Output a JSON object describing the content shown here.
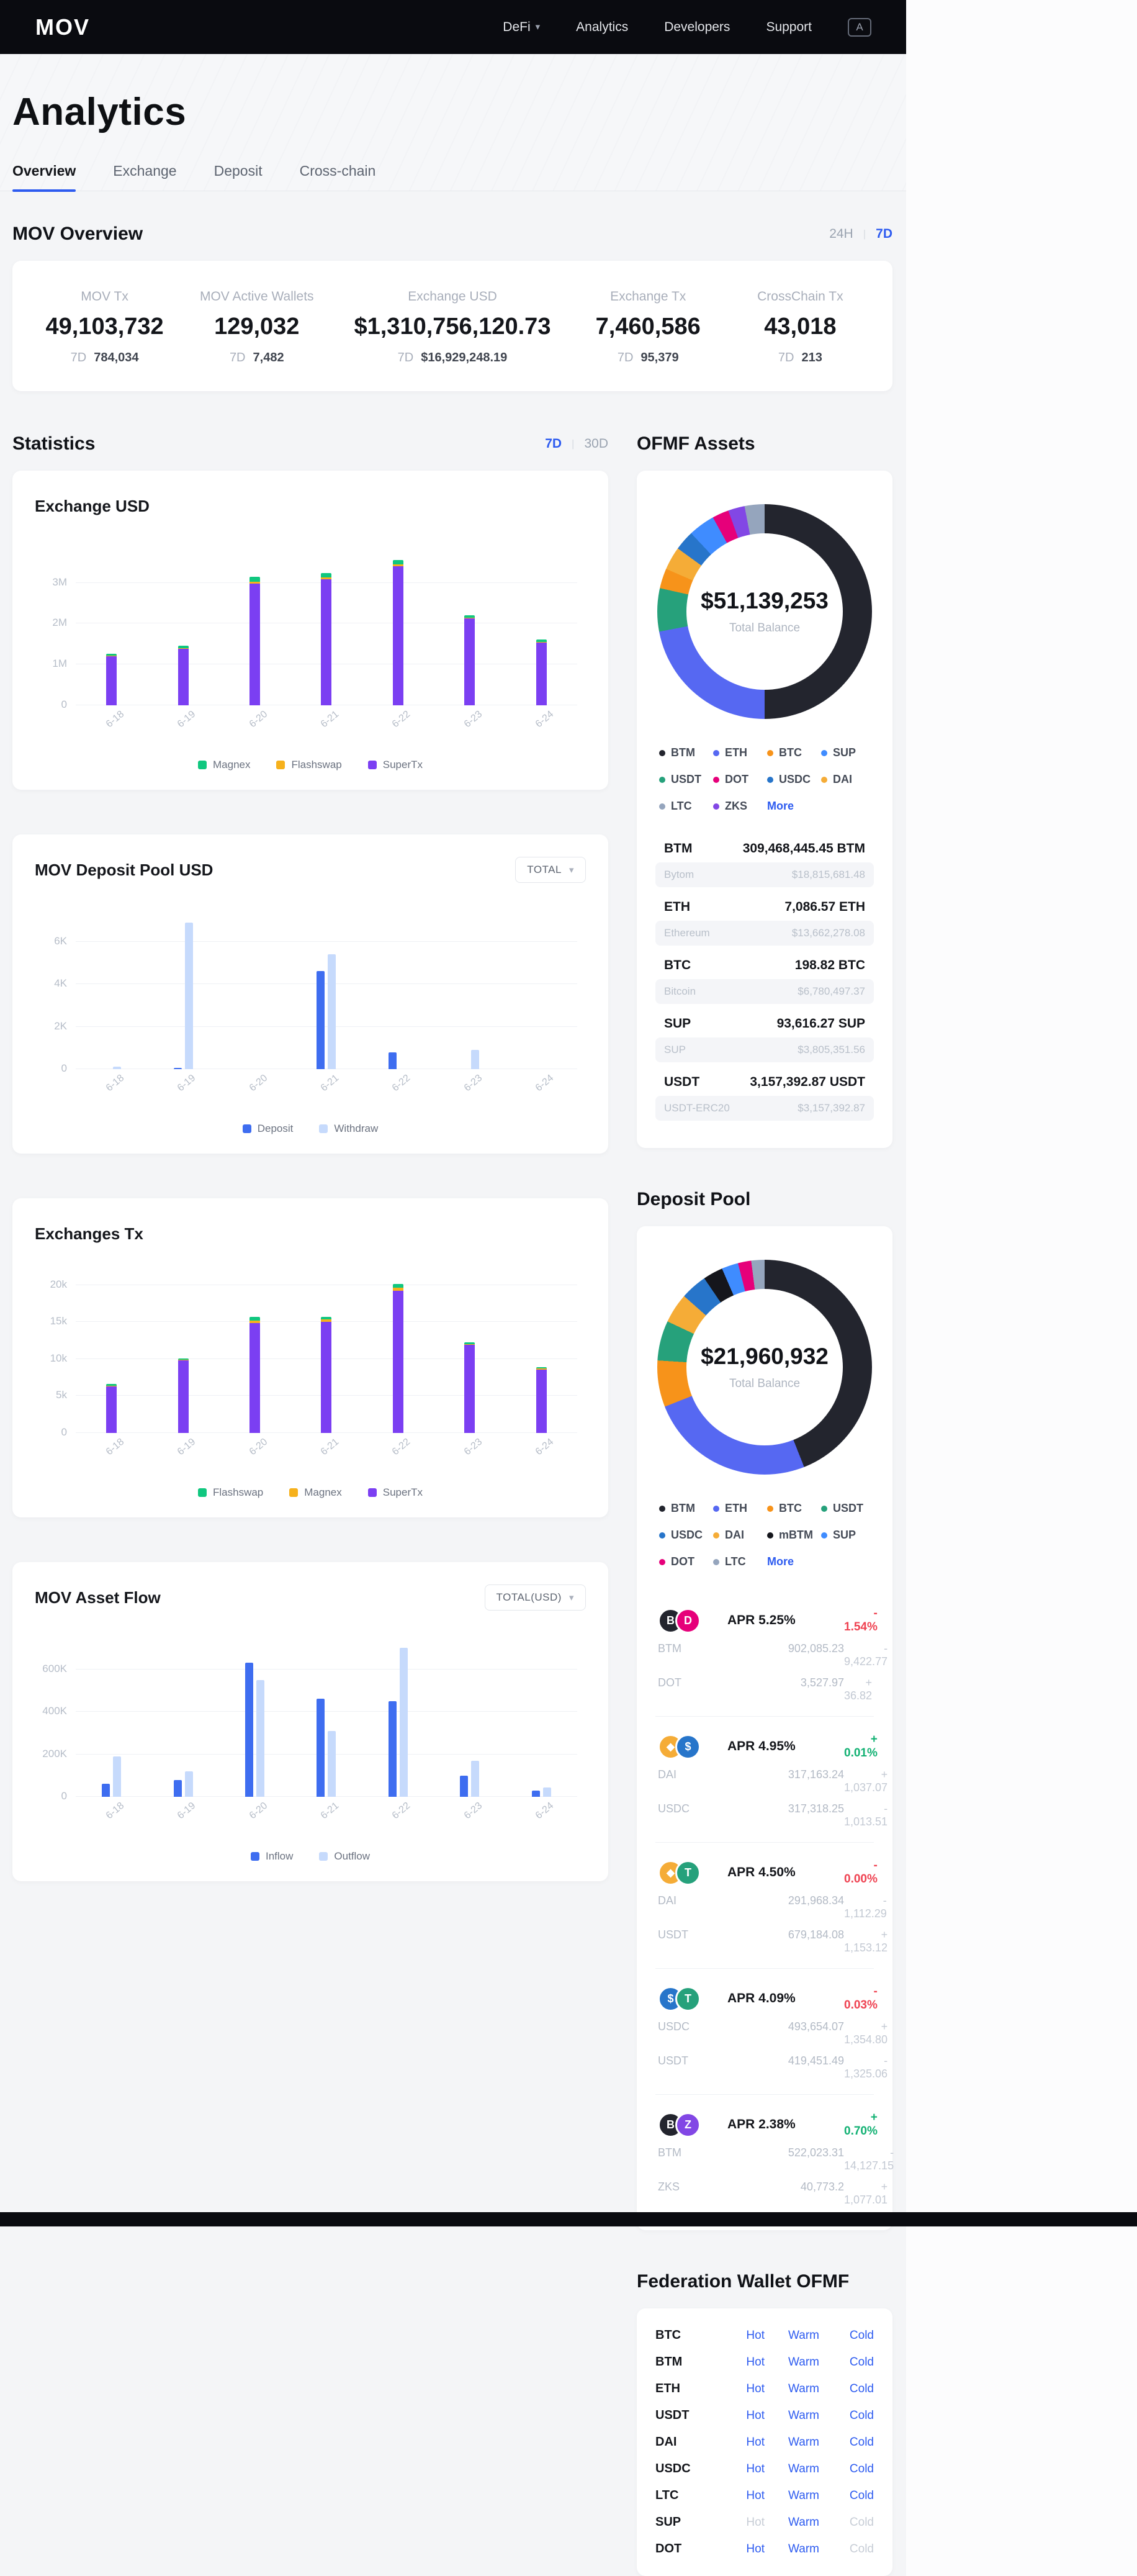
{
  "header": {
    "logo": "MOV",
    "nav": [
      {
        "label": "DeFi"
      },
      {
        "label": "Analytics"
      },
      {
        "label": "Developers"
      },
      {
        "label": "Support"
      }
    ],
    "lang_icon": "A"
  },
  "hero": {
    "title": "Analytics"
  },
  "tabs": [
    {
      "label": "Overview"
    },
    {
      "label": "Exchange"
    },
    {
      "label": "Deposit"
    },
    {
      "label": "Cross-chain"
    }
  ],
  "overview": {
    "title": "MOV Overview",
    "range_24h": "24H",
    "range_7d": "7D",
    "stats": [
      {
        "label": "MOV Tx",
        "value": "49,103,732",
        "sub_label": "7D",
        "sub_value": "784,034"
      },
      {
        "label": "MOV Active Wallets",
        "value": "129,032",
        "sub_label": "7D",
        "sub_value": "7,482"
      },
      {
        "label": "Exchange USD",
        "value": "$1,310,756,120.73",
        "sub_label": "7D",
        "sub_value": "$16,929,248.19"
      },
      {
        "label": "Exchange Tx",
        "value": "7,460,586",
        "sub_label": "7D",
        "sub_value": "95,379"
      },
      {
        "label": "CrossChain Tx",
        "value": "43,018",
        "sub_label": "7D",
        "sub_value": "213"
      }
    ]
  },
  "statistics": {
    "title": "Statistics",
    "range_7d": "7D",
    "range_30d": "30D"
  },
  "ofmf": {
    "title": "OFMF Assets",
    "assets": [
      {
        "symbol": "BTM",
        "chain": "Bytom",
        "amount": "309,468,445.45 BTM",
        "usd": "$18,815,681.48"
      },
      {
        "symbol": "ETH",
        "chain": "Ethereum",
        "amount": "7,086.57 ETH",
        "usd": "$13,662,278.08"
      },
      {
        "symbol": "BTC",
        "chain": "Bitcoin",
        "amount": "198.82 BTC",
        "usd": "$6,780,497.37"
      },
      {
        "symbol": "SUP",
        "chain": "SUP",
        "amount": "93,616.27 SUP",
        "usd": "$3,805,351.56"
      },
      {
        "symbol": "USDT",
        "chain": "USDT-ERC20",
        "amount": "3,157,392.87 USDT",
        "usd": "$3,157,392.87"
      }
    ]
  },
  "deposit_pool": {
    "title": "Deposit Pool",
    "pools": [
      {
        "icons": [
          {
            "sym": "BTM",
            "color": "#23252e",
            "letter": "B"
          },
          {
            "sym": "DOT",
            "color": "#e6007a",
            "letter": "D"
          }
        ],
        "apr": "APR 5.25%",
        "apr_change": "- 1.54%",
        "dir": "down",
        "rows": [
          {
            "token": "BTM",
            "value": "902,085.23",
            "change": "- 9,422.77"
          },
          {
            "token": "DOT",
            "value": "3,527.97",
            "change": "+ 36.82"
          }
        ]
      },
      {
        "icons": [
          {
            "sym": "DAI",
            "color": "#f5ac37",
            "letter": "◆"
          },
          {
            "sym": "USDC",
            "color": "#2775ca",
            "letter": "$"
          }
        ],
        "apr": "APR 4.95%",
        "apr_change": "+ 0.01%",
        "dir": "up",
        "rows": [
          {
            "token": "DAI",
            "value": "317,163.24",
            "change": "+ 1,037.07"
          },
          {
            "token": "USDC",
            "value": "317,318.25",
            "change": "- 1,013.51"
          }
        ]
      },
      {
        "icons": [
          {
            "sym": "DAI",
            "color": "#f5ac37",
            "letter": "◆"
          },
          {
            "sym": "USDT",
            "color": "#26a17b",
            "letter": "T"
          }
        ],
        "apr": "APR 4.50%",
        "apr_change": "- 0.00%",
        "dir": "down",
        "rows": [
          {
            "token": "DAI",
            "value": "291,968.34",
            "change": "- 1,112.29"
          },
          {
            "token": "USDT",
            "value": "679,184.08",
            "change": "+ 1,153.12"
          }
        ]
      },
      {
        "icons": [
          {
            "sym": "USDC",
            "color": "#2775ca",
            "letter": "$"
          },
          {
            "sym": "USDT",
            "color": "#26a17b",
            "letter": "T"
          }
        ],
        "apr": "APR 4.09%",
        "apr_change": "- 0.03%",
        "dir": "down",
        "rows": [
          {
            "token": "USDC",
            "value": "493,654.07",
            "change": "+ 1,354.80"
          },
          {
            "token": "USDT",
            "value": "419,451.49",
            "change": "- 1,325.06"
          }
        ]
      },
      {
        "icons": [
          {
            "sym": "BTM",
            "color": "#23252e",
            "letter": "B"
          },
          {
            "sym": "ZKS",
            "color": "#8247e5",
            "letter": "Z"
          }
        ],
        "apr": "APR 2.38%",
        "apr_change": "+ 0.70%",
        "dir": "up",
        "rows": [
          {
            "token": "BTM",
            "value": "522,023.31",
            "change": "- 14,127.15"
          },
          {
            "token": "ZKS",
            "value": "40,773.2",
            "change": "+ 1,077.01"
          }
        ]
      }
    ]
  },
  "federation": {
    "title": "Federation Wallet OFMF",
    "rows": [
      {
        "symbol": "BTC",
        "links": [
          {
            "label": "Hot",
            "enabled": true
          },
          {
            "label": "Warm",
            "enabled": true
          },
          {
            "label": "Cold",
            "enabled": true
          }
        ]
      },
      {
        "symbol": "BTM",
        "links": [
          {
            "label": "Hot",
            "enabled": true
          },
          {
            "label": "Warm",
            "enabled": true
          },
          {
            "label": "Cold",
            "enabled": true
          }
        ]
      },
      {
        "symbol": "ETH",
        "links": [
          {
            "label": "Hot",
            "enabled": true
          },
          {
            "label": "Warm",
            "enabled": true
          },
          {
            "label": "Cold",
            "enabled": true
          }
        ]
      },
      {
        "symbol": "USDT",
        "links": [
          {
            "label": "Hot",
            "enabled": true
          },
          {
            "label": "Warm",
            "enabled": true
          },
          {
            "label": "Cold",
            "enabled": true
          }
        ]
      },
      {
        "symbol": "DAI",
        "links": [
          {
            "label": "Hot",
            "enabled": true
          },
          {
            "label": "Warm",
            "enabled": true
          },
          {
            "label": "Cold",
            "enabled": true
          }
        ]
      },
      {
        "symbol": "USDC",
        "links": [
          {
            "label": "Hot",
            "enabled": true
          },
          {
            "label": "Warm",
            "enabled": true
          },
          {
            "label": "Cold",
            "enabled": true
          }
        ]
      },
      {
        "symbol": "LTC",
        "links": [
          {
            "label": "Hot",
            "enabled": true
          },
          {
            "label": "Warm",
            "enabled": true
          },
          {
            "label": "Cold",
            "enabled": true
          }
        ]
      },
      {
        "symbol": "SUP",
        "links": [
          {
            "label": "Hot",
            "enabled": false
          },
          {
            "label": "Warm",
            "enabled": true
          },
          {
            "label": "Cold",
            "enabled": false
          }
        ]
      },
      {
        "symbol": "DOT",
        "links": [
          {
            "label": "Hot",
            "enabled": true
          },
          {
            "label": "Warm",
            "enabled": true
          },
          {
            "label": "Cold",
            "enabled": false
          }
        ]
      }
    ]
  },
  "chart_data": [
    {
      "id": "exchange-usd",
      "type": "stacked-bar",
      "title": "Exchange USD",
      "categories": [
        "6-18",
        "6-19",
        "6-20",
        "6-21",
        "6-22",
        "6-23",
        "6-24"
      ],
      "series": [
        {
          "name": "SuperTx",
          "color": "#7b3ff2",
          "values": [
            1200000,
            1380000,
            2980000,
            3080000,
            3400000,
            2130000,
            1540000
          ]
        },
        {
          "name": "Flashswap",
          "color": "#f6b11c",
          "values": [
            10000,
            15000,
            40000,
            50000,
            50000,
            20000,
            15000
          ]
        },
        {
          "name": "Magnex",
          "color": "#10c77f",
          "values": [
            50000,
            60000,
            120000,
            110000,
            110000,
            60000,
            55000
          ]
        }
      ],
      "legend": [
        {
          "name": "Magnex",
          "color": "#10c77f"
        },
        {
          "name": "Flashswap",
          "color": "#f6b11c"
        },
        {
          "name": "SuperTx",
          "color": "#7b3ff2"
        }
      ],
      "yticks": [
        {
          "v": 0,
          "label": "0"
        },
        {
          "v": 1000000,
          "label": "1M"
        },
        {
          "v": 2000000,
          "label": "2M"
        },
        {
          "v": 3000000,
          "label": "3M"
        }
      ],
      "ymax": 3800000,
      "xlabel": "",
      "ylabel": "",
      "grid": true,
      "legend_position": "bottom"
    },
    {
      "id": "deposit-pool-usd",
      "type": "grouped-bar",
      "title": "MOV Deposit Pool USD",
      "filter": "TOTAL",
      "categories": [
        "6-18",
        "6-19",
        "6-20",
        "6-21",
        "6-22",
        "6-23",
        "6-24"
      ],
      "series": [
        {
          "name": "Deposit",
          "color": "#3e6df0",
          "values": [
            0,
            60,
            0,
            4600,
            800,
            0,
            0
          ]
        },
        {
          "name": "Withdraw",
          "color": "#c6dafc",
          "values": [
            120,
            6900,
            0,
            5400,
            0,
            900,
            0
          ]
        }
      ],
      "legend": [
        {
          "name": "Deposit",
          "color": "#3e6df0"
        },
        {
          "name": "Withdraw",
          "color": "#c6dafc"
        }
      ],
      "yticks": [
        {
          "v": 0,
          "label": "0"
        },
        {
          "v": 2000,
          "label": "2K"
        },
        {
          "v": 4000,
          "label": "4K"
        },
        {
          "v": 6000,
          "label": "6K"
        }
      ],
      "ymax": 7300,
      "grid": true,
      "legend_position": "bottom"
    },
    {
      "id": "exchanges-tx",
      "type": "stacked-bar",
      "title": "Exchanges Tx",
      "categories": [
        "6-18",
        "6-19",
        "6-20",
        "6-21",
        "6-22",
        "6-23",
        "6-24"
      ],
      "series": [
        {
          "name": "SuperTx",
          "color": "#7b3ff2",
          "values": [
            6300,
            9800,
            14900,
            15000,
            19200,
            11900,
            8600
          ]
        },
        {
          "name": "Magnex",
          "color": "#f6b11c",
          "values": [
            100,
            100,
            300,
            400,
            500,
            150,
            100
          ]
        },
        {
          "name": "Flashswap",
          "color": "#10c77f",
          "values": [
            200,
            200,
            500,
            300,
            500,
            250,
            200
          ]
        }
      ],
      "legend": [
        {
          "name": "Flashswap",
          "color": "#10c77f"
        },
        {
          "name": "Magnex",
          "color": "#f6b11c"
        },
        {
          "name": "SuperTx",
          "color": "#7b3ff2"
        }
      ],
      "yticks": [
        {
          "v": 0,
          "label": "0"
        },
        {
          "v": 5000,
          "label": "5k"
        },
        {
          "v": 10000,
          "label": "10k"
        },
        {
          "v": 15000,
          "label": "15k"
        },
        {
          "v": 20000,
          "label": "20k"
        }
      ],
      "ymax": 21000,
      "grid": true,
      "legend_position": "bottom"
    },
    {
      "id": "asset-flow",
      "type": "grouped-bar",
      "title": "MOV Asset Flow",
      "filter": "TOTAL(USD)",
      "categories": [
        "6-18",
        "6-19",
        "6-20",
        "6-21",
        "6-22",
        "6-23",
        "6-24"
      ],
      "series": [
        {
          "name": "Inflow",
          "color": "#3e6df0",
          "values": [
            60000,
            80000,
            630000,
            460000,
            450000,
            100000,
            30000
          ]
        },
        {
          "name": "Outflow",
          "color": "#c6dafc",
          "values": [
            190000,
            120000,
            550000,
            310000,
            700000,
            170000,
            45000
          ]
        }
      ],
      "legend": [
        {
          "name": "Inflow",
          "color": "#3e6df0"
        },
        {
          "name": "Outflow",
          "color": "#c6dafc"
        }
      ],
      "yticks": [
        {
          "v": 0,
          "label": "0"
        },
        {
          "v": 200000,
          "label": "200K"
        },
        {
          "v": 400000,
          "label": "400K"
        },
        {
          "v": 600000,
          "label": "600K"
        }
      ],
      "ymax": 730000,
      "grid": true,
      "legend_position": "bottom"
    },
    {
      "id": "ofmf-donut",
      "type": "pie",
      "total": "$51,139,253",
      "subtitle": "Total Balance",
      "more_label": "More",
      "segments": [
        {
          "name": "BTM",
          "color": "#23252e",
          "pct": 50
        },
        {
          "name": "ETH",
          "color": "#5668f2",
          "pct": 22
        },
        {
          "name": "USDT",
          "color": "#26a17b",
          "pct": 6.5
        },
        {
          "name": "BTC",
          "color": "#f7931a",
          "pct": 3
        },
        {
          "name": "DAI",
          "color": "#f5ac37",
          "pct": 3.5
        },
        {
          "name": "USDC",
          "color": "#2775ca",
          "pct": 3
        },
        {
          "name": "SUP",
          "color": "#3f8cff",
          "pct": 4
        },
        {
          "name": "DOT",
          "color": "#e6007a",
          "pct": 2.5
        },
        {
          "name": "ZKS",
          "color": "#8247e5",
          "pct": 2.5
        },
        {
          "name": "LTC",
          "color": "#95a5bd",
          "pct": 3
        }
      ],
      "legend": [
        {
          "name": "BTM",
          "color": "#23252e"
        },
        {
          "name": "ETH",
          "color": "#5668f2"
        },
        {
          "name": "BTC",
          "color": "#f7931a"
        },
        {
          "name": "SUP",
          "color": "#3f8cff"
        },
        {
          "name": "USDT",
          "color": "#26a17b"
        },
        {
          "name": "DOT",
          "color": "#e6007a"
        },
        {
          "name": "USDC",
          "color": "#2775ca"
        },
        {
          "name": "DAI",
          "color": "#f5ac37"
        },
        {
          "name": "LTC",
          "color": "#95a5bd"
        },
        {
          "name": "ZKS",
          "color": "#8247e5"
        }
      ]
    },
    {
      "id": "deposit-donut",
      "type": "pie",
      "total": "$21,960,932",
      "subtitle": "Total Balance",
      "more_label": "More",
      "segments": [
        {
          "name": "BTM",
          "color": "#23252e",
          "pct": 44
        },
        {
          "name": "ETH",
          "color": "#5668f2",
          "pct": 25
        },
        {
          "name": "BTC",
          "color": "#f7931a",
          "pct": 7
        },
        {
          "name": "USDT",
          "color": "#26a17b",
          "pct": 6
        },
        {
          "name": "DAI",
          "color": "#f5ac37",
          "pct": 4.5
        },
        {
          "name": "USDC",
          "color": "#2775ca",
          "pct": 4
        },
        {
          "name": "mBTM",
          "color": "#15161c",
          "pct": 3
        },
        {
          "name": "SUP",
          "color": "#3f8cff",
          "pct": 2.5
        },
        {
          "name": "DOT",
          "color": "#e6007a",
          "pct": 2
        },
        {
          "name": "LTC",
          "color": "#95a5bd",
          "pct": 2
        }
      ],
      "legend": [
        {
          "name": "BTM",
          "color": "#23252e"
        },
        {
          "name": "ETH",
          "color": "#5668f2"
        },
        {
          "name": "BTC",
          "color": "#f7931a"
        },
        {
          "name": "USDT",
          "color": "#26a17b"
        },
        {
          "name": "USDC",
          "color": "#2775ca"
        },
        {
          "name": "DAI",
          "color": "#f5ac37"
        },
        {
          "name": "mBTM",
          "color": "#15161c"
        },
        {
          "name": "SUP",
          "color": "#3f8cff"
        },
        {
          "name": "DOT",
          "color": "#e6007a"
        },
        {
          "name": "LTC",
          "color": "#95a5bd"
        }
      ]
    }
  ]
}
